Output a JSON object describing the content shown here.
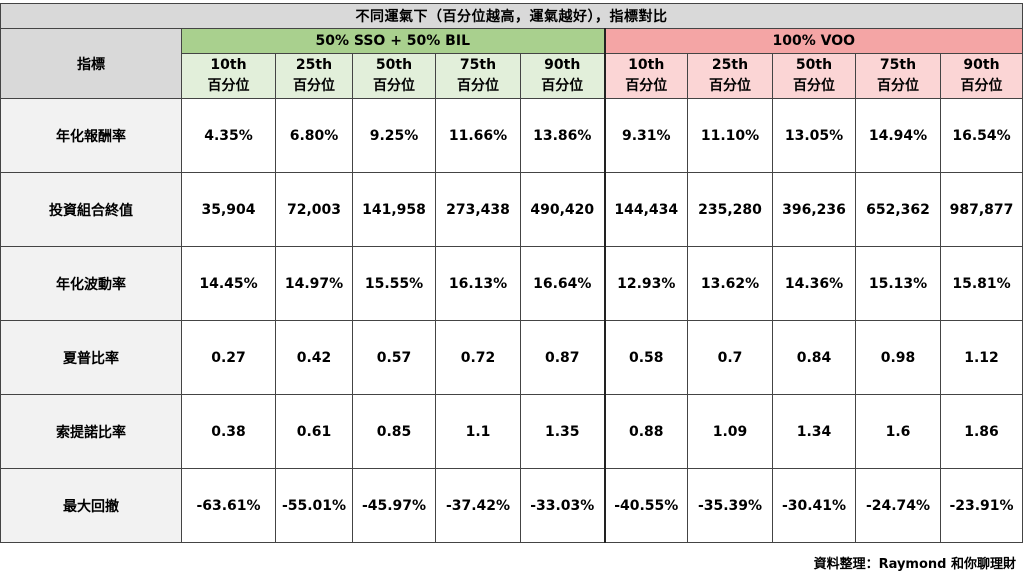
{
  "title": "不同運氣下（百分位越高，運氣越好），指標對比",
  "metric_header": "指標",
  "groups": [
    {
      "name": "50% SSO + 50% BIL"
    },
    {
      "name": "100% VOO"
    }
  ],
  "percentiles": [
    {
      "rank": "10th",
      "unit": "百分位"
    },
    {
      "rank": "25th",
      "unit": "百分位"
    },
    {
      "rank": "50th",
      "unit": "百分位"
    },
    {
      "rank": "75th",
      "unit": "百分位"
    },
    {
      "rank": "90th",
      "unit": "百分位"
    }
  ],
  "rows": [
    {
      "label": "年化報酬率",
      "values": [
        "4.35%",
        "6.80%",
        "9.25%",
        "11.66%",
        "13.86%",
        "9.31%",
        "11.10%",
        "13.05%",
        "14.94%",
        "16.54%"
      ]
    },
    {
      "label": "投資組合終值",
      "values": [
        "35,904",
        "72,003",
        "141,958",
        "273,438",
        "490,420",
        "144,434",
        "235,280",
        "396,236",
        "652,362",
        "987,877"
      ]
    },
    {
      "label": "年化波動率",
      "values": [
        "14.45%",
        "14.97%",
        "15.55%",
        "16.13%",
        "16.64%",
        "12.93%",
        "13.62%",
        "14.36%",
        "15.13%",
        "15.81%"
      ]
    },
    {
      "label": "夏普比率",
      "values": [
        "0.27",
        "0.42",
        "0.57",
        "0.72",
        "0.87",
        "0.58",
        "0.7",
        "0.84",
        "0.98",
        "1.12"
      ]
    },
    {
      "label": "索提諾比率",
      "values": [
        "0.38",
        "0.61",
        "0.85",
        "1.1",
        "1.35",
        "0.88",
        "1.09",
        "1.34",
        "1.6",
        "1.86"
      ]
    },
    {
      "label": "最大回撤",
      "values": [
        "-63.61%",
        "-55.01%",
        "-45.97%",
        "-37.42%",
        "-33.03%",
        "-40.55%",
        "-35.39%",
        "-30.41%",
        "-24.74%",
        "-23.91%"
      ]
    }
  ],
  "credit": "資料整理：Raymond 和你聊理財",
  "colors": {
    "group_a": "#a9d08e",
    "group_a_light": "#e2efda",
    "group_b": "#f4a5a5",
    "group_b_light": "#fbd5d5",
    "header_gray": "#d9d9d9"
  }
}
